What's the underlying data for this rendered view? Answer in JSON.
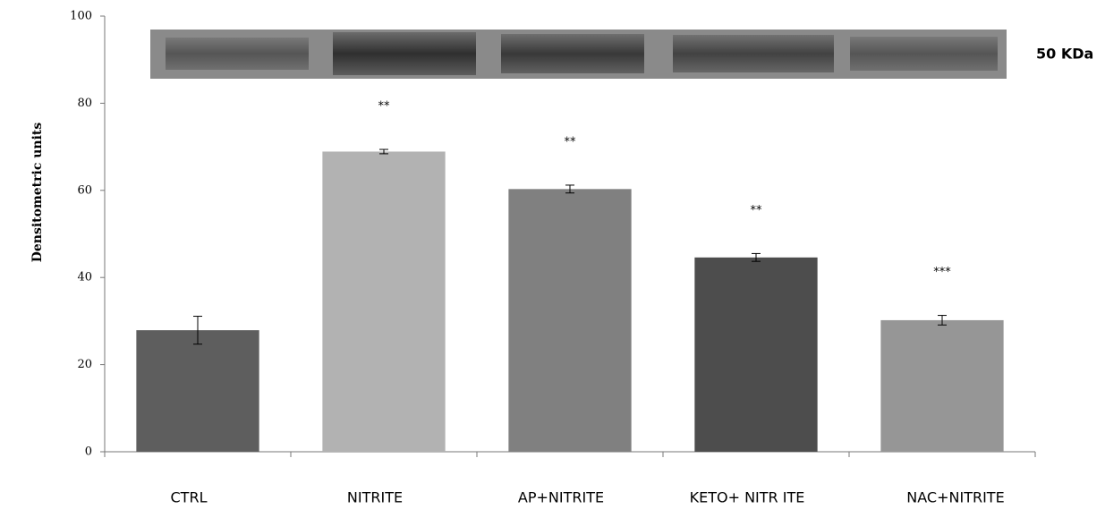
{
  "chart_data": {
    "type": "bar",
    "y_label": "Densitometric units",
    "blot_label": "50 KDa",
    "categories": [
      "CTRL",
      "NITRITE",
      "AP+NITRITE",
      "KETO+ NITR ITE",
      "NAC+NITRITE"
    ],
    "values": [
      27.9,
      68.9,
      60.3,
      44.6,
      30.2
    ],
    "errors": [
      3.2,
      0.5,
      0.9,
      0.9,
      1.1
    ],
    "significance": [
      null,
      "**",
      "**",
      "**",
      "***"
    ],
    "colors": [
      "#5e5e5e",
      "#b2b2b2",
      "#808080",
      "#4d4d4d",
      "#969696"
    ],
    "ylim": [
      0,
      100
    ],
    "yticks": [
      0,
      20,
      40,
      60,
      80,
      100
    ]
  }
}
